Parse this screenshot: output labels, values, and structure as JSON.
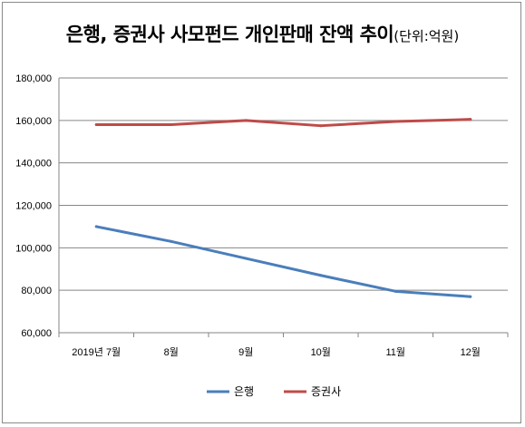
{
  "chart_data": {
    "type": "line",
    "title": "은행, 증권사 사모펀드 개인판매 잔액 추이",
    "unit": "(단위:억원)",
    "categories": [
      "2019년 7월",
      "8월",
      "9월",
      "10월",
      "11월",
      "12월"
    ],
    "series": [
      {
        "name": "은행",
        "color": "#4a7ebb",
        "values": [
          110000,
          103000,
          95000,
          87000,
          79500,
          77000
        ]
      },
      {
        "name": "증권사",
        "color": "#be4b48",
        "values": [
          158000,
          158000,
          160000,
          157500,
          159500,
          160500
        ]
      }
    ],
    "ylim": [
      60000,
      180000
    ],
    "yticks": [
      "60,000",
      "80,000",
      "100,000",
      "120,000",
      "140,000",
      "160,000",
      "180,000"
    ],
    "grid": true,
    "legend": "bottom"
  }
}
